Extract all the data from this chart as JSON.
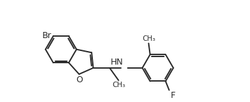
{
  "bg_color": "#ffffff",
  "line_color": "#2a2a2a",
  "line_width": 1.4,
  "figsize": [
    3.66,
    1.5
  ],
  "dpi": 100,
  "xlim": [
    0.2,
    7.2
  ],
  "ylim": [
    0.5,
    3.8
  ]
}
